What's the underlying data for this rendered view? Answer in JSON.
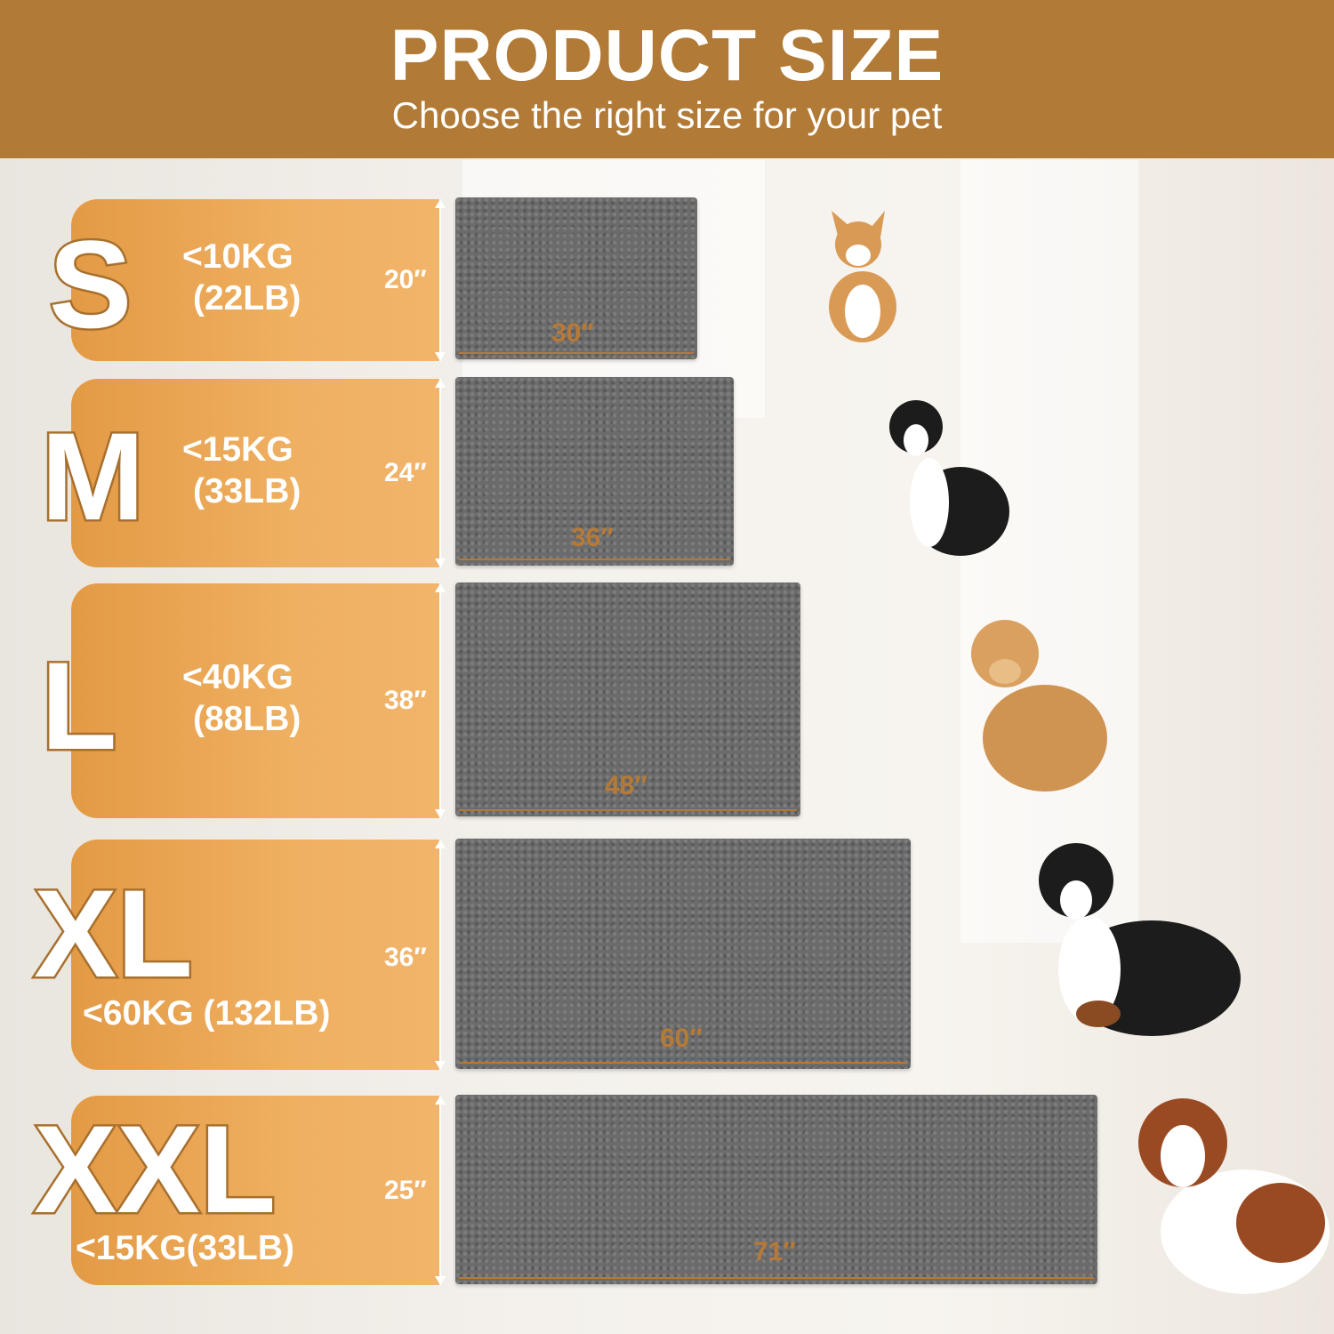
{
  "header": {
    "title": "PRODUCT SIZE",
    "subtitle": "Choose the right size for your pet"
  },
  "colors": {
    "header": "#b17a36",
    "card": "#efb061",
    "mat": "#6b6b6b",
    "accent": "#b77a36"
  },
  "sizes": [
    {
      "size": "S",
      "weight_kg": "<10KG",
      "weight_lb": "(22LB)",
      "height": "20″",
      "width": "30″",
      "dog": "corgi"
    },
    {
      "size": "M",
      "weight_kg": "<15KG",
      "weight_lb": "(33LB)",
      "height": "24″",
      "width": "36″",
      "dog": "border-collie"
    },
    {
      "size": "L",
      "weight_kg": "<40KG",
      "weight_lb": "(88LB)",
      "height": "38″",
      "width": "48″",
      "dog": "golden-retriever"
    },
    {
      "size": "XL",
      "weight": "<60KG (132LB)",
      "height": "36″",
      "width": "60″",
      "dog": "bernese-mountain-dog"
    },
    {
      "size": "XXL",
      "weight": "<15KG(33LB)",
      "height": "25″",
      "width": "71″",
      "dog": "saint-bernard"
    }
  ]
}
